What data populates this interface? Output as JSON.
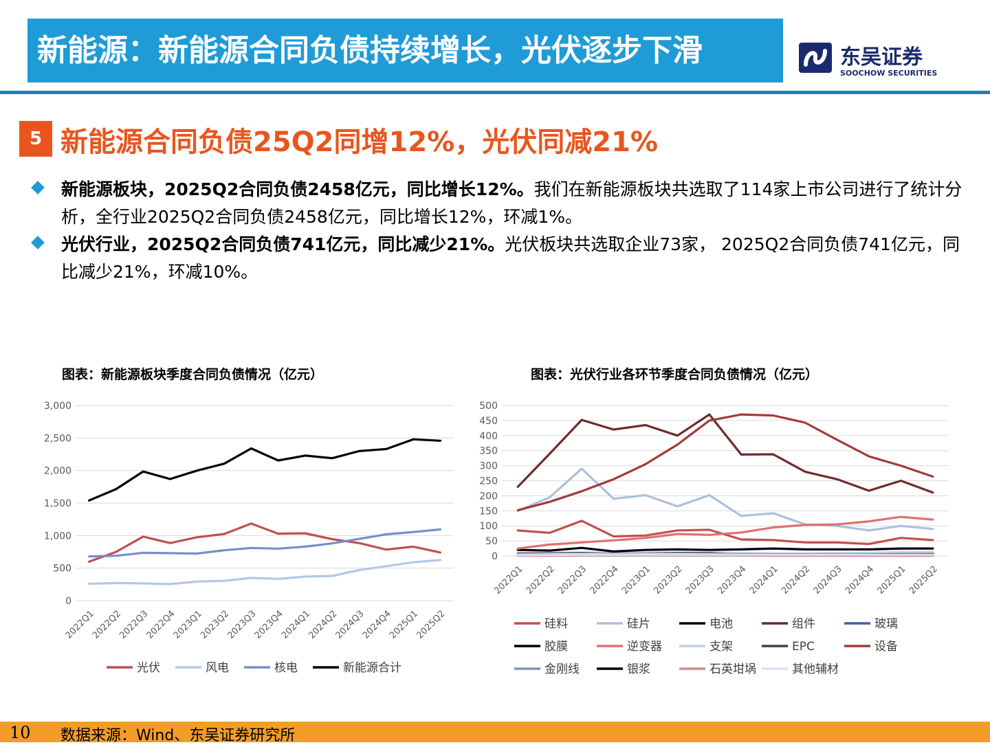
{
  "header": {
    "title": "新能源：新能源合同负债持续增长，光伏逐步下滑",
    "logo_cn": "东吴证券",
    "logo_en": "SOOCHOW SECURITIES"
  },
  "section": {
    "number": "5",
    "subtitle": "新能源合同负债25Q2同增12%，光伏同减21%"
  },
  "bullets": [
    {
      "bold": "新能源板块，2025Q2合同负债2458亿元，同比增长12%。",
      "text": "我们在新能源板块共选取了114家上市公司进行了统计分析，全行业2025Q2合同负债2458亿元，同比增长12%，环减1%。"
    },
    {
      "bold": "光伏行业，2025Q2合同负债741亿元，同比减少21%。",
      "text": "光伏板块共选取企业73家， 2025Q2合同负债741亿元，同比减少21%，环减10%。"
    }
  ],
  "chart_left_title": "图表：新能源板块季度合同负债情况（亿元）",
  "chart_right_title": "图表：光伏行业各环节季度合同负债情况（亿元）",
  "chart_data": [
    {
      "type": "line",
      "title": "图表：新能源板块季度合同负债情况（亿元）",
      "categories": [
        "2022Q1",
        "2022Q2",
        "2022Q3",
        "2022Q4",
        "2023Q1",
        "2023Q2",
        "2023Q3",
        "2023Q4",
        "2024Q1",
        "2024Q2",
        "2024Q3",
        "2024Q4",
        "2025Q1",
        "2025Q2"
      ],
      "ylim": [
        0,
        3000
      ],
      "yticks": [
        0,
        500,
        1000,
        1500,
        2000,
        2500,
        3000
      ],
      "ytick_labels": [
        "0",
        "500",
        "1,000",
        "1,500",
        "2,000",
        "2,500",
        "3,000"
      ],
      "legend_position": "bottom",
      "series": [
        {
          "name": "光伏",
          "color": "#c0504d",
          "values": [
            600,
            750,
            985,
            885,
            975,
            1025,
            1185,
            1030,
            1035,
            945,
            885,
            785,
            830,
            741
          ]
        },
        {
          "name": "风电",
          "color": "#b4c7e7",
          "values": [
            260,
            270,
            265,
            255,
            295,
            305,
            350,
            335,
            370,
            380,
            470,
            530,
            590,
            625
          ]
        },
        {
          "name": "核电",
          "color": "#7590c8",
          "values": [
            680,
            690,
            735,
            730,
            725,
            775,
            810,
            800,
            830,
            880,
            950,
            1020,
            1055,
            1095
          ]
        },
        {
          "name": "新能源合计",
          "color": "#000000",
          "values": [
            1540,
            1715,
            1985,
            1870,
            2000,
            2105,
            2340,
            2155,
            2230,
            2190,
            2300,
            2330,
            2480,
            2458
          ]
        }
      ]
    },
    {
      "type": "line",
      "title": "图表：光伏行业各环节季度合同负债情况（亿元）",
      "categories": [
        "2022Q1",
        "2022Q2",
        "2022Q3",
        "2022Q4",
        "2023Q1",
        "2023Q2",
        "2023Q3",
        "2023Q4",
        "2024Q1",
        "2024Q2",
        "2024Q3",
        "2024Q4",
        "2025Q1",
        "2025Q2"
      ],
      "ylim": [
        0,
        500
      ],
      "yticks": [
        0,
        50,
        100,
        150,
        200,
        250,
        300,
        350,
        400,
        450,
        500
      ],
      "legend_position": "bottom",
      "series": [
        {
          "name": "硅料",
          "color": "#c0504d",
          "values": [
            85,
            77,
            117,
            65,
            68,
            85,
            87,
            55,
            53,
            45,
            45,
            40,
            60,
            53
          ]
        },
        {
          "name": "硅片",
          "color": "#adbfdc",
          "values": [
            150,
            195,
            290,
            190,
            202,
            165,
            202,
            133,
            142,
            105,
            100,
            85,
            100,
            90
          ]
        },
        {
          "name": "电池",
          "color": "#000000",
          "values": [
            20,
            18,
            27,
            15,
            20,
            22,
            20,
            22,
            25,
            22,
            22,
            22,
            25,
            25
          ]
        },
        {
          "name": "组件",
          "color": "#6e2b2b",
          "values": [
            230,
            340,
            452,
            420,
            435,
            400,
            470,
            337,
            338,
            280,
            255,
            217,
            250,
            211
          ]
        },
        {
          "name": "玻璃",
          "color": "#3f5fa6",
          "values": [
            5,
            5,
            6,
            5,
            5,
            6,
            6,
            5,
            5,
            5,
            5,
            5,
            5,
            6
          ]
        },
        {
          "name": "胶膜",
          "color": "#000000",
          "values": [
            8,
            9,
            10,
            8,
            9,
            10,
            10,
            9,
            8,
            8,
            8,
            8,
            9,
            9
          ]
        },
        {
          "name": "逆变器",
          "color": "#e07070",
          "values": [
            25,
            38,
            45,
            52,
            60,
            73,
            70,
            78,
            95,
            103,
            105,
            115,
            130,
            121
          ]
        },
        {
          "name": "支架",
          "color": "#bdd0ea",
          "values": [
            6,
            7,
            8,
            7,
            8,
            8,
            8,
            10,
            9,
            9,
            10,
            11,
            12,
            13
          ]
        },
        {
          "name": "EPC",
          "color": "#404040",
          "values": [
            3,
            3,
            4,
            4,
            4,
            4,
            5,
            5,
            5,
            5,
            5,
            5,
            6,
            6
          ]
        },
        {
          "name": "设备",
          "color": "#a33a3a",
          "values": [
            152,
            180,
            215,
            255,
            305,
            370,
            450,
            470,
            467,
            443,
            386,
            331,
            300,
            264
          ]
        },
        {
          "name": "金刚线",
          "color": "#8090c8",
          "values": [
            2,
            2,
            2,
            2,
            2,
            2,
            2,
            2,
            2,
            2,
            2,
            2,
            2,
            2
          ]
        },
        {
          "name": "银浆",
          "color": "#000000",
          "values": [
            2,
            2,
            3,
            3,
            3,
            3,
            3,
            3,
            3,
            3,
            3,
            3,
            3,
            3
          ]
        },
        {
          "name": "石英坩埚",
          "color": "#d08a8a",
          "values": [
            1,
            1,
            2,
            2,
            2,
            2,
            2,
            2,
            1,
            1,
            1,
            1,
            1,
            1
          ]
        },
        {
          "name": "其他辅材",
          "color": "#d9e1f2",
          "values": [
            3,
            3,
            4,
            4,
            4,
            4,
            4,
            4,
            4,
            4,
            4,
            4,
            4,
            4
          ]
        }
      ]
    }
  ],
  "footer": {
    "page_number": "10",
    "source": "数据来源：Wind、东吴证券研究所"
  }
}
